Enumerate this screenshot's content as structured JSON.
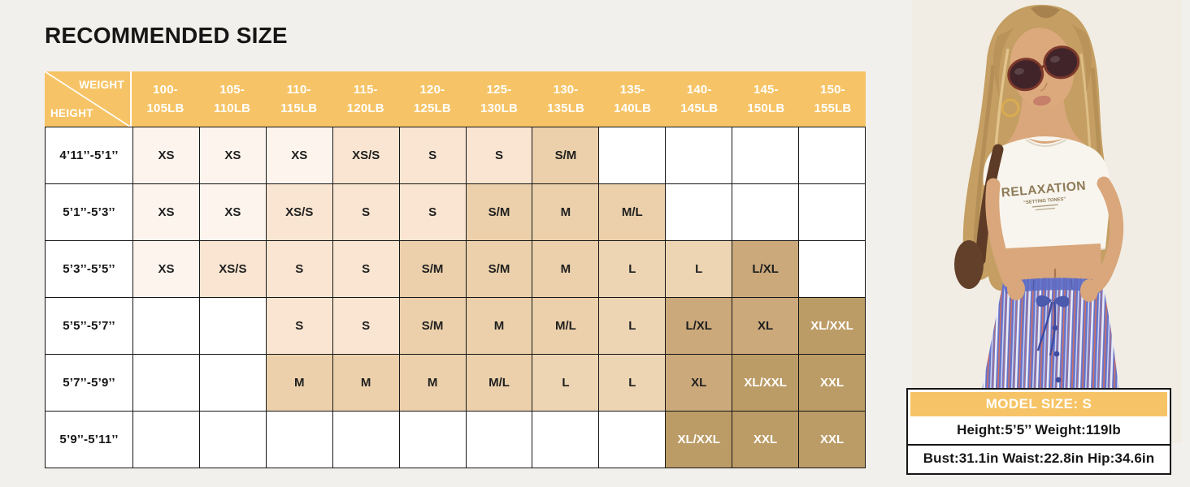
{
  "page": {
    "title": "RECOMMENDED SIZE"
  },
  "colors": {
    "accent_orange": "#F6C466",
    "table_line": "#161616",
    "page_background": "#F2F0EC"
  },
  "size_table": {
    "corner": {
      "weight": "WEIGHT",
      "height": "HEIGHT"
    },
    "weight_columns": [
      {
        "top": "100-",
        "bottom": "105LB"
      },
      {
        "top": "105-",
        "bottom": "110LB"
      },
      {
        "top": "110-",
        "bottom": "115LB"
      },
      {
        "top": "115-",
        "bottom": "120LB"
      },
      {
        "top": "120-",
        "bottom": "125LB"
      },
      {
        "top": "125-",
        "bottom": "130LB"
      },
      {
        "top": "130-",
        "bottom": "135LB"
      },
      {
        "top": "135-",
        "bottom": "140LB"
      },
      {
        "top": "140-",
        "bottom": "145LB"
      },
      {
        "top": "145-",
        "bottom": "150LB"
      },
      {
        "top": "150-",
        "bottom": "155LB"
      }
    ],
    "rows": [
      {
        "height_label": "4’11’’-5’1’’",
        "cells": [
          "XS",
          "XS",
          "XS",
          "XS/S",
          "S",
          "S",
          "S/M",
          "",
          "",
          "",
          ""
        ]
      },
      {
        "height_label": "5’1’’-5’3’’",
        "cells": [
          "XS",
          "XS",
          "XS/S",
          "S",
          "S",
          "S/M",
          "M",
          "M/L",
          "",
          "",
          ""
        ]
      },
      {
        "height_label": "5’3’’-5’5’’",
        "cells": [
          "XS",
          "XS/S",
          "S",
          "S",
          "S/M",
          "S/M",
          "M",
          "L",
          "L",
          "L/XL",
          ""
        ]
      },
      {
        "height_label": "5’5’’-5’7’’",
        "cells": [
          "",
          "",
          "S",
          "S",
          "S/M",
          "M",
          "M/L",
          "L",
          "L/XL",
          "XL",
          "XL/XXL"
        ]
      },
      {
        "height_label": "5’7’’-5’9’’",
        "cells": [
          "",
          "",
          "M",
          "M",
          "M",
          "M/L",
          "L",
          "L",
          "XL",
          "XL/XXL",
          "XXL"
        ]
      },
      {
        "height_label": "5’9’’-5’11’’",
        "cells": [
          "",
          "",
          "",
          "",
          "",
          "",
          "",
          "",
          "XL/XXL",
          "XXL",
          "XXL"
        ]
      }
    ],
    "cell_colors": {
      "XS": {
        "bg": "#FCF4ED",
        "text": "#1F1F1F"
      },
      "XS/S": {
        "bg": "#F9E5D1",
        "text": "#1F1F1F"
      },
      "S": {
        "bg": "#F9E5D1",
        "text": "#1F1F1F"
      },
      "S/M": {
        "bg": "#EBD0AB",
        "text": "#1F1F1F"
      },
      "M": {
        "bg": "#EBD0AB",
        "text": "#1F1F1F"
      },
      "M/L": {
        "bg": "#EBD0AB",
        "text": "#1F1F1F"
      },
      "L": {
        "bg": "#EDD5B4",
        "text": "#1F1F1F"
      },
      "L/XL": {
        "bg": "#CBA97B",
        "text": "#1F1F1F"
      },
      "XL": {
        "bg": "#CBA97B",
        "text": "#1F1F1F"
      },
      "XL/XXL": {
        "bg": "#BC9C66",
        "text": "#FFFFFF"
      },
      "XXL": {
        "bg": "#BC9C66",
        "text": "#FFFFFF"
      },
      "": {
        "bg": "#FFFFFF",
        "text": "#1F1F1F"
      }
    }
  },
  "model": {
    "size_label": "MODEL SIZE: S",
    "height_weight": "Height:5’5’’ Weight:119lb",
    "measurements": "Bust:31.1in Waist:22.8in Hip:34.6in",
    "shirt_text": "RELAXATION",
    "shirt_subtext": "“SETTING TONES”"
  }
}
